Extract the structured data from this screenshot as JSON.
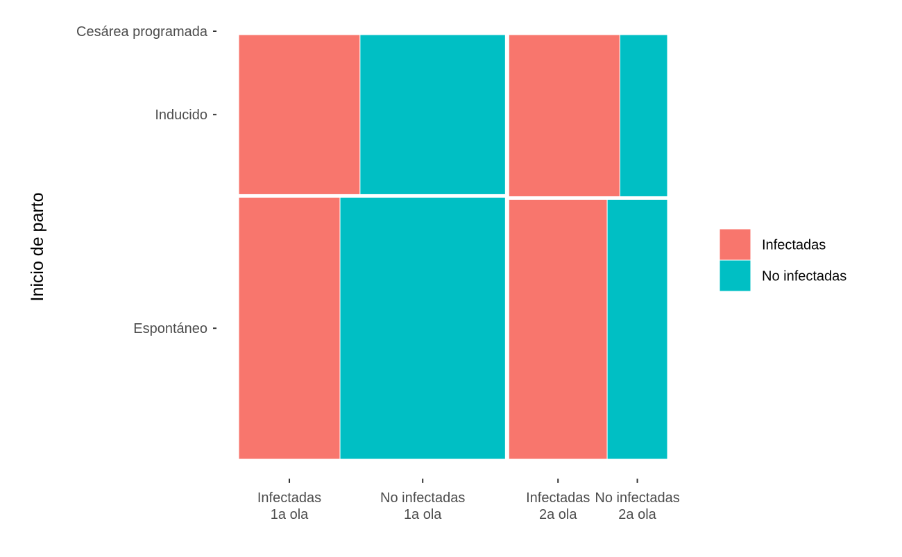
{
  "chart_data": {
    "type": "mosaic",
    "ylabel": "Inicio de parto",
    "xlabel": "",
    "colors": {
      "Infectadas": "#F8766D",
      "No infectadas": "#00BFC4"
    },
    "legend": {
      "position": "right",
      "entries": [
        "Infectadas",
        "No infectadas"
      ]
    },
    "grid": false,
    "y_categories": [
      "Espontáneo",
      "Inducido",
      "Cesárea programada"
    ],
    "y_tick_labels": [
      "Espontáneo",
      "Inducido",
      "Cesárea programada"
    ],
    "waves": [
      {
        "name": "1a ola",
        "share": 0.627,
        "blocks": [
          {
            "y_category": "Espontáneo",
            "share": 0.621,
            "groups": [
              {
                "label": "Infectadas",
                "share": 0.38
              },
              {
                "label": "No infectadas",
                "share": 0.62
              }
            ]
          },
          {
            "y_category": "Inducido",
            "share": 0.379,
            "groups": [
              {
                "label": "Infectadas",
                "share": 0.455
              },
              {
                "label": "No infectadas",
                "share": 0.545
              }
            ]
          }
        ]
      },
      {
        "name": "2a ola",
        "share": 0.373,
        "blocks": [
          {
            "y_category": "Espontáneo",
            "share": 0.616,
            "groups": [
              {
                "label": "Infectadas",
                "share": 0.62
              },
              {
                "label": "No infectadas",
                "share": 0.38
              }
            ]
          },
          {
            "y_category": "Inducido",
            "share": 0.384,
            "groups": [
              {
                "label": "Infectadas",
                "share": 0.7
              },
              {
                "label": "No infectadas",
                "share": 0.3
              }
            ]
          }
        ]
      }
    ],
    "x_tick_labels": [
      [
        "Infectadas",
        "1a ola"
      ],
      [
        "No infectadas",
        "1a ola"
      ],
      [
        "Infectadas",
        "2a ola"
      ],
      [
        "No infectadas",
        "2a ola"
      ]
    ]
  }
}
